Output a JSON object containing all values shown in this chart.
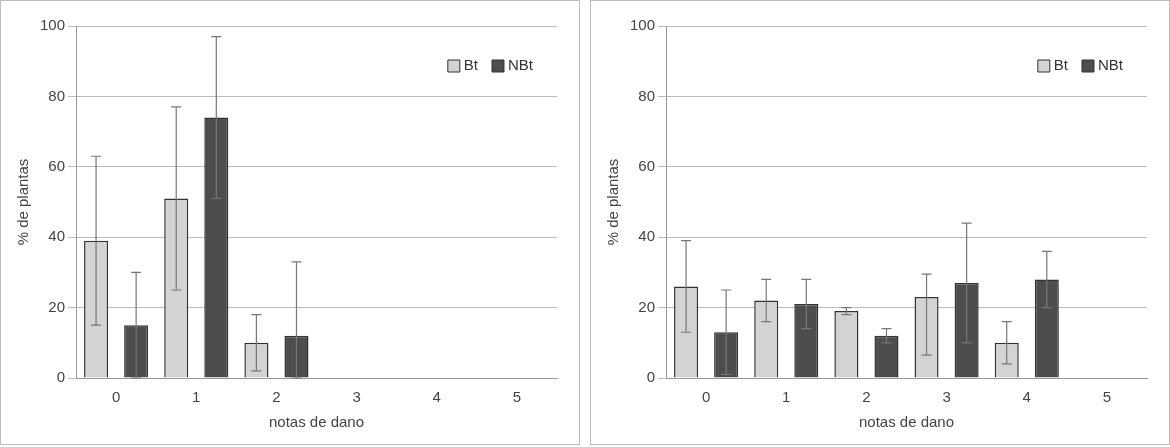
{
  "chart_data": [
    {
      "type": "bar",
      "xlabel": "notas de dano",
      "ylabel": "% de plantas",
      "categories": [
        "0",
        "1",
        "2",
        "3",
        "4",
        "5"
      ],
      "ylim": [
        0,
        100
      ],
      "yticks": [
        0,
        20,
        40,
        60,
        80,
        100
      ],
      "grid": "y",
      "legend": "top right",
      "series": [
        {
          "name": "Bt",
          "color": "#d3d3d3",
          "values": [
            39,
            51,
            10,
            null,
            null,
            null
          ],
          "errors": [
            24,
            26,
            8,
            null,
            null,
            null
          ]
        },
        {
          "name": "NBt",
          "color": "#4d4d4d",
          "values": [
            15,
            74,
            12,
            null,
            null,
            null
          ],
          "errors": [
            15,
            23,
            [
              0,
              33
            ],
            null,
            null,
            null
          ]
        }
      ]
    },
    {
      "type": "bar",
      "xlabel": "notas de dano",
      "ylabel": "% de plantas",
      "categories": [
        "0",
        "1",
        "2",
        "3",
        "4",
        "5"
      ],
      "ylim": [
        0,
        100
      ],
      "yticks": [
        0,
        20,
        40,
        60,
        80,
        100
      ],
      "grid": "y",
      "legend": "top right",
      "series": [
        {
          "name": "Bt",
          "color": "#d3d3d3",
          "values": [
            26,
            22,
            19,
            23,
            10,
            null
          ],
          "errors": [
            13,
            6,
            1,
            [
              6.5,
              29.5
            ],
            6,
            null
          ]
        },
        {
          "name": "NBt",
          "color": "#4d4d4d",
          "values": [
            13,
            21,
            12,
            27,
            28,
            null
          ],
          "errors": [
            12,
            7,
            2,
            17,
            8,
            null
          ]
        }
      ]
    }
  ]
}
